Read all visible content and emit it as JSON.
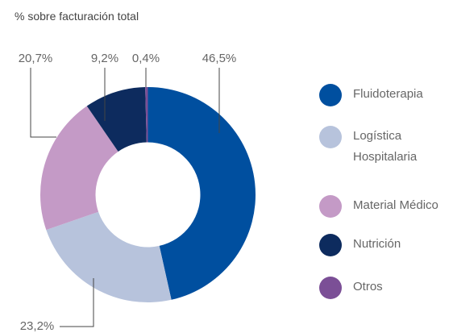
{
  "chart_data": {
    "type": "pie",
    "title": "% sobre facturación total",
    "categories": [
      "Fluidoterapia",
      "Logística Hospitalaria",
      "Material Médico",
      "Nutrición",
      "Otros"
    ],
    "values": [
      46.5,
      23.2,
      20.7,
      9.2,
      0.4
    ],
    "value_labels": [
      "46,5%",
      "23,2%",
      "20,7%",
      "9,2%",
      "0,4%"
    ],
    "colors": [
      "#004f9f",
      "#b7c3dc",
      "#c49ac6",
      "#0d2b5e",
      "#7b4f96"
    ],
    "donut": true,
    "legend": "right"
  }
}
